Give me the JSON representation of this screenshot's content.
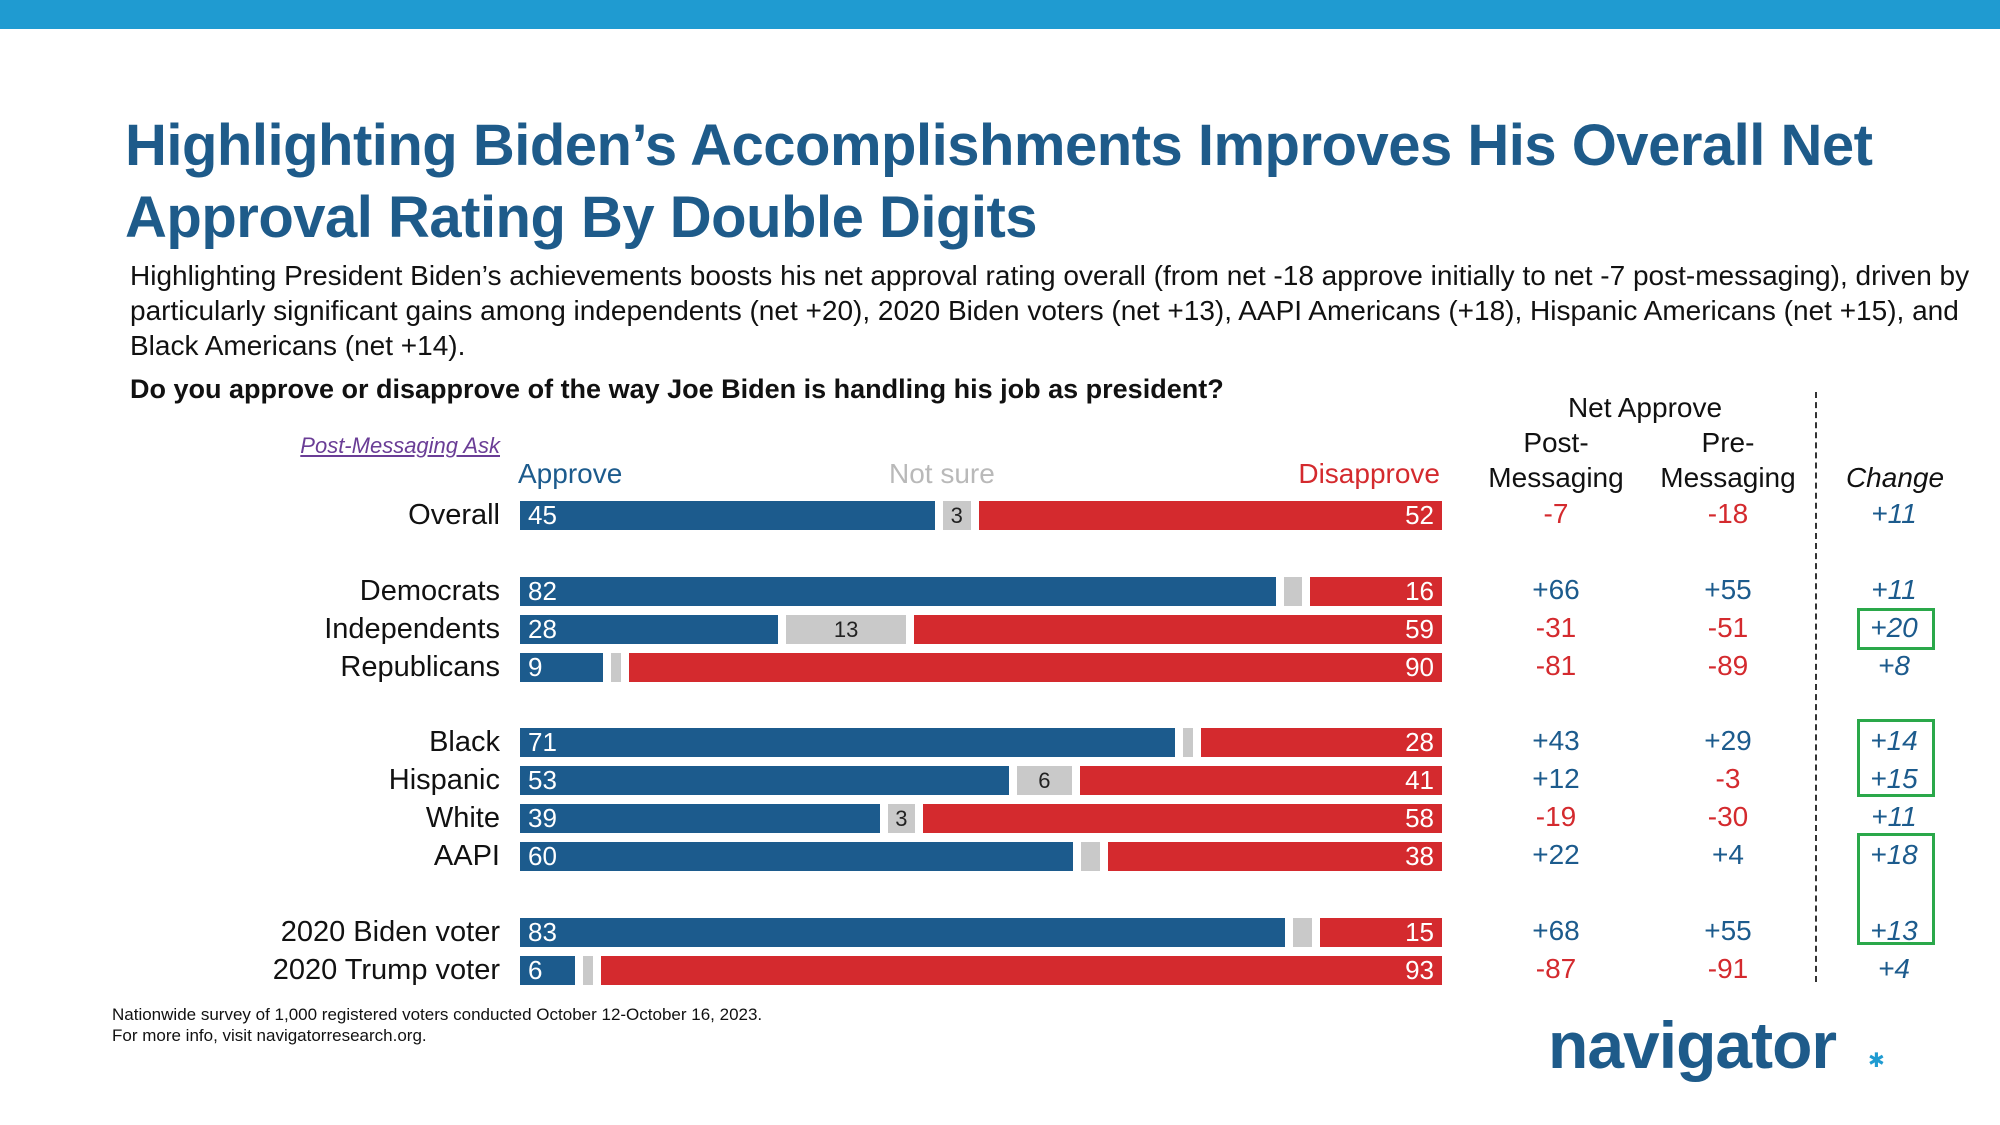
{
  "header": {
    "title": "Highlighting Biden’s Accomplishments Improves His Overall Net Approval Rating By Double Digits",
    "subtitle": "Highlighting President Biden’s achievements boosts his net approval rating overall (from net -18 approve initially to net -7 post-messaging), driven by particularly significant gains among independents (net +20), 2020 Biden voters (net +13), AAPI Americans (+18), Hispanic Americans (net +15), and Black Americans (net +14).",
    "question": "Do you approve or disapprove of the way Joe Biden is handling his job as president?",
    "post_messaging_ask": "Post-Messaging Ask"
  },
  "legend": {
    "approve": "Approve",
    "not_sure": "Not sure",
    "disapprove": "Disapprove"
  },
  "columns": {
    "net_approve": "Net Approve",
    "post": "Post-\nMessaging",
    "pre": "Pre-\nMessaging",
    "change": "Change"
  },
  "colors": {
    "approve": "#1c5b8d",
    "not_sure": "#c9c9c9",
    "disapprove": "#d42a2e",
    "title": "#1e5b8a",
    "top_bar": "#1f9bd1",
    "highlight": "#2aa84a"
  },
  "chart_data": {
    "type": "bar",
    "stacked": true,
    "orientation": "horizontal",
    "categories": [
      "Overall",
      "Democrats",
      "Independents",
      "Republicans",
      "Black",
      "Hispanic",
      "White",
      "AAPI",
      "2020 Biden voter",
      "2020 Trump voter"
    ],
    "series": [
      {
        "name": "Approve",
        "values": [
          45,
          82,
          28,
          9,
          71,
          53,
          39,
          60,
          83,
          6
        ]
      },
      {
        "name": "Not sure",
        "values": [
          3,
          2,
          13,
          1,
          1,
          6,
          3,
          2,
          2,
          1
        ]
      },
      {
        "name": "Disapprove",
        "values": [
          52,
          16,
          59,
          90,
          28,
          41,
          58,
          38,
          15,
          93
        ]
      }
    ],
    "not_sure_labels": [
      "3",
      "",
      "13",
      "",
      "",
      "6",
      "3",
      "",
      "",
      ""
    ],
    "net_post_messaging": [
      "-7",
      "+66",
      "-31",
      "-81",
      "+43",
      "+12",
      "-19",
      "+22",
      "+68",
      "-87"
    ],
    "net_pre_messaging": [
      "-18",
      "+55",
      "-51",
      "-89",
      "+29",
      "-3",
      "-30",
      "+4",
      "+55",
      "-91"
    ],
    "change": [
      "+11",
      "+11",
      "+20",
      "+8",
      "+14",
      "+15",
      "+11",
      "+18",
      "+13",
      "+4"
    ],
    "highlighted_change": [
      false,
      false,
      true,
      false,
      true,
      true,
      false,
      true,
      true,
      false
    ],
    "xlim": [
      0,
      100
    ]
  },
  "footer": {
    "line1": "Nationwide survey of 1,000 registered voters conducted October 12-October 16, 2023.",
    "line2": "For more info, visit navigatorresearch.org.",
    "logo": "navigator"
  }
}
